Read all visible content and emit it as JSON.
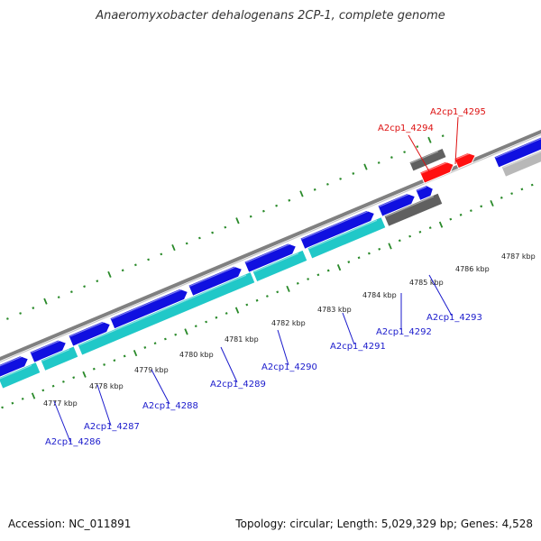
{
  "title": "Anaeromyxobacter dehalogenans 2CP-1, complete genome",
  "footer": {
    "accession": "Accession: NC_011891",
    "topology": "Topology: circular; Length: 5,029,329 bp; Genes: 4,528"
  },
  "colors": {
    "forward_cds": "#1010e0",
    "reverse_cds": "#20c8c8",
    "rna_gene": "#606060",
    "highlighted_gene": "#ff1010",
    "pseudogene": "#b8b8b8",
    "backbone": "#808080",
    "tick_marks": "#2a8a2a",
    "gene_label": "#1a1acc",
    "highlighted_label": "#dd1111"
  },
  "scale_ticks": [
    "4777 kbp",
    "4778 kbp",
    "4779 kbp",
    "4780 kbp",
    "4781 kbp",
    "4782 kbp",
    "4783 kbp",
    "4784 kbp",
    "4785 kbp",
    "4786 kbp",
    "4787 kbp"
  ],
  "gene_labels": [
    {
      "name": "A2cp1_4286",
      "highlight": false
    },
    {
      "name": "A2cp1_4287",
      "highlight": false
    },
    {
      "name": "A2cp1_4288",
      "highlight": false
    },
    {
      "name": "A2cp1_4289",
      "highlight": false
    },
    {
      "name": "A2cp1_4290",
      "highlight": false
    },
    {
      "name": "A2cp1_4291",
      "highlight": false
    },
    {
      "name": "A2cp1_4292",
      "highlight": false
    },
    {
      "name": "A2cp1_4293",
      "highlight": false
    },
    {
      "name": "A2cp1_4294",
      "highlight": true
    },
    {
      "name": "A2cp1_4295",
      "highlight": true
    }
  ]
}
